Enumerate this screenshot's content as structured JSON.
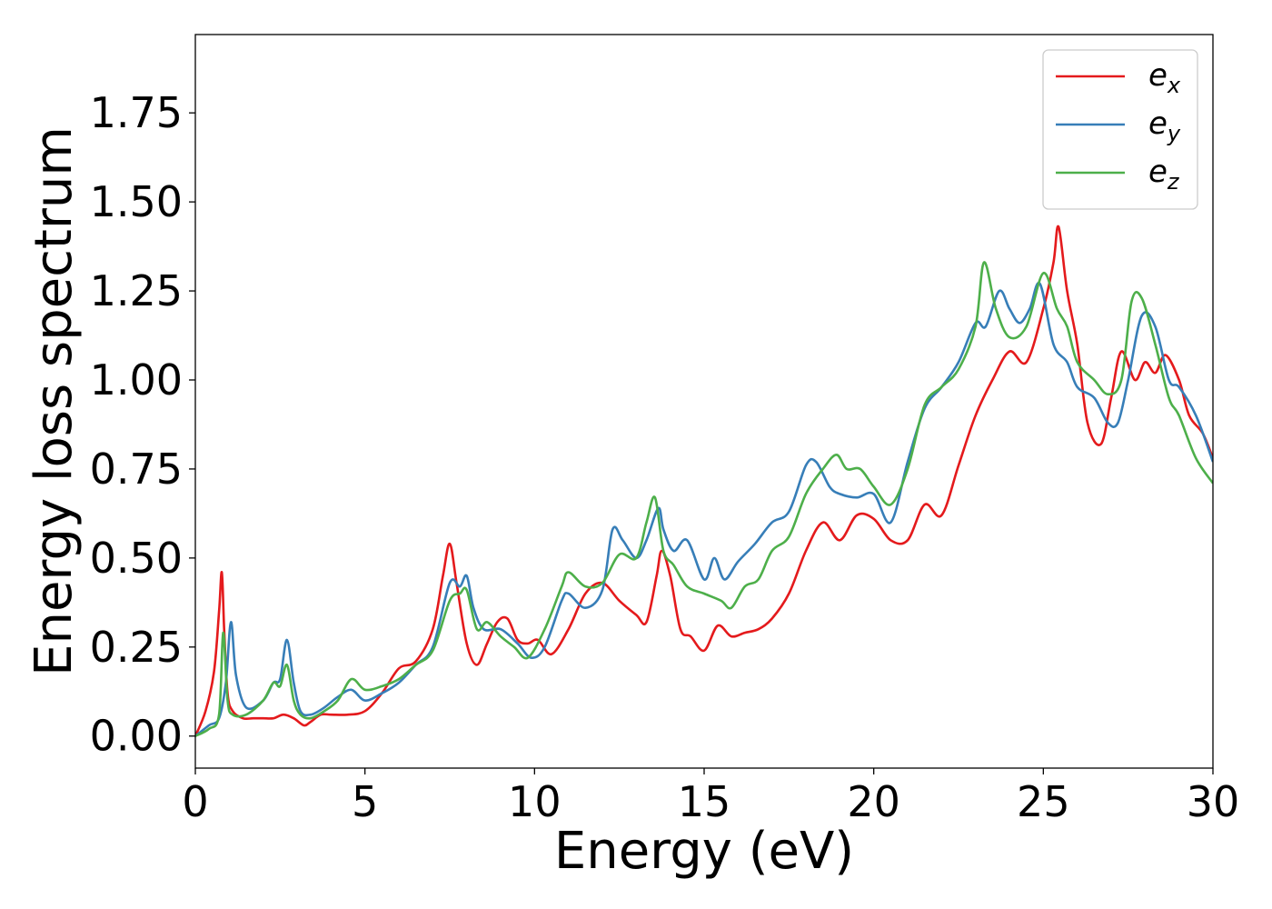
{
  "chart_data": {
    "type": "line",
    "xlabel": "Energy (eV)",
    "ylabel": "Energy loss spectrum",
    "xlim": [
      0,
      30
    ],
    "ylim": [
      -0.09,
      1.97
    ],
    "xticks": [
      0,
      5,
      10,
      15,
      20,
      25,
      30
    ],
    "xtick_labels": [
      "0",
      "5",
      "10",
      "15",
      "20",
      "25",
      "30"
    ],
    "yticks": [
      0.0,
      0.25,
      0.5,
      0.75,
      1.0,
      1.25,
      1.5,
      1.75
    ],
    "ytick_labels": [
      "0.00",
      "0.25",
      "0.50",
      "0.75",
      "1.00",
      "1.25",
      "1.50",
      "1.75"
    ],
    "grid": false,
    "legend_position": "top-right",
    "series": [
      {
        "name": "e",
        "subscript": "x",
        "color": "#e41a1c",
        "x": [
          0,
          0.3,
          0.55,
          0.7,
          0.78,
          0.85,
          0.95,
          1.1,
          1.4,
          1.7,
          2.0,
          2.3,
          2.6,
          2.9,
          3.2,
          3.4,
          3.7,
          4.0,
          4.5,
          5.0,
          5.5,
          6.0,
          6.5,
          7.0,
          7.3,
          7.5,
          7.7,
          8.0,
          8.3,
          8.6,
          8.9,
          9.2,
          9.5,
          9.8,
          10.1,
          10.5,
          11.0,
          11.5,
          12.0,
          12.5,
          13.0,
          13.3,
          13.6,
          13.75,
          14.0,
          14.3,
          14.6,
          15.0,
          15.4,
          15.8,
          16.2,
          16.6,
          17.0,
          17.5,
          18.0,
          18.5,
          19.0,
          19.5,
          20.0,
          20.5,
          21.0,
          21.5,
          22.0,
          22.5,
          23.0,
          23.5,
          24.0,
          24.5,
          25.0,
          25.3,
          25.45,
          25.7,
          26.0,
          26.3,
          26.7,
          27.0,
          27.3,
          27.7,
          28.0,
          28.3,
          28.6,
          29.0,
          29.3,
          29.7,
          30.0
        ],
        "values": [
          0.0,
          0.07,
          0.18,
          0.35,
          0.46,
          0.3,
          0.12,
          0.07,
          0.05,
          0.05,
          0.05,
          0.05,
          0.06,
          0.05,
          0.03,
          0.04,
          0.06,
          0.06,
          0.06,
          0.07,
          0.12,
          0.19,
          0.21,
          0.3,
          0.45,
          0.54,
          0.43,
          0.26,
          0.2,
          0.26,
          0.32,
          0.33,
          0.27,
          0.26,
          0.27,
          0.23,
          0.3,
          0.4,
          0.43,
          0.38,
          0.34,
          0.32,
          0.45,
          0.52,
          0.45,
          0.3,
          0.28,
          0.24,
          0.31,
          0.28,
          0.29,
          0.3,
          0.33,
          0.4,
          0.52,
          0.6,
          0.55,
          0.62,
          0.61,
          0.55,
          0.55,
          0.65,
          0.62,
          0.76,
          0.9,
          1.0,
          1.08,
          1.05,
          1.2,
          1.33,
          1.43,
          1.25,
          1.1,
          0.88,
          0.82,
          0.95,
          1.08,
          1.0,
          1.05,
          1.02,
          1.07,
          1.0,
          0.9,
          0.85,
          0.78
        ]
      },
      {
        "name": "e",
        "subscript": "y",
        "color": "#377eb8",
        "x": [
          0,
          0.4,
          0.7,
          0.9,
          1.05,
          1.2,
          1.5,
          2.0,
          2.3,
          2.5,
          2.7,
          2.9,
          3.1,
          3.4,
          3.8,
          4.2,
          4.6,
          5.0,
          5.5,
          6.0,
          6.5,
          7.0,
          7.5,
          7.8,
          8.0,
          8.2,
          8.5,
          9.0,
          9.5,
          9.9,
          10.3,
          10.8,
          11.0,
          11.5,
          12.0,
          12.3,
          12.6,
          13.0,
          13.3,
          13.65,
          13.8,
          14.1,
          14.5,
          15.0,
          15.3,
          15.6,
          16.0,
          16.5,
          17.0,
          17.5,
          18.0,
          18.3,
          18.7,
          19.0,
          19.5,
          20.0,
          20.5,
          21.0,
          21.5,
          22.0,
          22.5,
          23.0,
          23.3,
          23.7,
          24.0,
          24.3,
          24.6,
          24.9,
          25.3,
          25.7,
          26.0,
          26.5,
          26.9,
          27.2,
          27.5,
          27.9,
          28.3,
          28.7,
          29.0,
          29.5,
          30.0
        ],
        "values": [
          0.0,
          0.03,
          0.05,
          0.15,
          0.32,
          0.17,
          0.08,
          0.1,
          0.15,
          0.16,
          0.27,
          0.15,
          0.07,
          0.06,
          0.08,
          0.11,
          0.13,
          0.1,
          0.12,
          0.15,
          0.2,
          0.25,
          0.43,
          0.42,
          0.45,
          0.36,
          0.3,
          0.3,
          0.26,
          0.22,
          0.25,
          0.38,
          0.4,
          0.36,
          0.41,
          0.58,
          0.55,
          0.5,
          0.55,
          0.64,
          0.58,
          0.52,
          0.55,
          0.44,
          0.5,
          0.44,
          0.49,
          0.54,
          0.6,
          0.63,
          0.76,
          0.77,
          0.7,
          0.68,
          0.67,
          0.68,
          0.6,
          0.77,
          0.92,
          0.98,
          1.05,
          1.16,
          1.15,
          1.25,
          1.2,
          1.16,
          1.2,
          1.27,
          1.1,
          1.05,
          0.98,
          0.95,
          0.88,
          0.88,
          1.0,
          1.18,
          1.15,
          1.0,
          0.98,
          0.9,
          0.77
        ]
      },
      {
        "name": "e",
        "subscript": "z",
        "color": "#4daf4a",
        "x": [
          0,
          0.4,
          0.7,
          0.82,
          0.95,
          1.1,
          1.5,
          2.0,
          2.3,
          2.5,
          2.7,
          2.9,
          3.1,
          3.4,
          3.8,
          4.2,
          4.6,
          5.0,
          5.5,
          6.0,
          6.5,
          7.0,
          7.5,
          7.8,
          8.0,
          8.3,
          8.6,
          9.0,
          9.4,
          9.8,
          10.3,
          10.8,
          11.0,
          11.5,
          12.0,
          12.5,
          13.0,
          13.3,
          13.55,
          13.8,
          14.1,
          14.5,
          15.0,
          15.5,
          15.8,
          16.2,
          16.6,
          17.0,
          17.5,
          18.0,
          18.5,
          18.9,
          19.2,
          19.6,
          20.0,
          20.5,
          21.0,
          21.5,
          22.0,
          22.5,
          23.0,
          23.25,
          23.6,
          24.0,
          24.5,
          25.0,
          25.4,
          25.7,
          26.0,
          26.5,
          26.9,
          27.3,
          27.6,
          27.9,
          28.3,
          28.7,
          29.0,
          29.5,
          30.0
        ],
        "values": [
          0.0,
          0.02,
          0.06,
          0.29,
          0.1,
          0.06,
          0.06,
          0.1,
          0.15,
          0.14,
          0.2,
          0.1,
          0.06,
          0.05,
          0.07,
          0.1,
          0.16,
          0.13,
          0.14,
          0.16,
          0.2,
          0.24,
          0.38,
          0.4,
          0.41,
          0.3,
          0.32,
          0.28,
          0.25,
          0.22,
          0.3,
          0.42,
          0.46,
          0.42,
          0.43,
          0.51,
          0.5,
          0.6,
          0.67,
          0.52,
          0.48,
          0.42,
          0.4,
          0.38,
          0.36,
          0.42,
          0.44,
          0.52,
          0.56,
          0.68,
          0.75,
          0.79,
          0.75,
          0.75,
          0.7,
          0.65,
          0.75,
          0.93,
          0.98,
          1.03,
          1.15,
          1.33,
          1.2,
          1.12,
          1.15,
          1.3,
          1.2,
          1.15,
          1.05,
          1.0,
          0.96,
          1.0,
          1.22,
          1.23,
          1.1,
          0.95,
          0.9,
          0.78,
          0.71
        ]
      }
    ]
  }
}
